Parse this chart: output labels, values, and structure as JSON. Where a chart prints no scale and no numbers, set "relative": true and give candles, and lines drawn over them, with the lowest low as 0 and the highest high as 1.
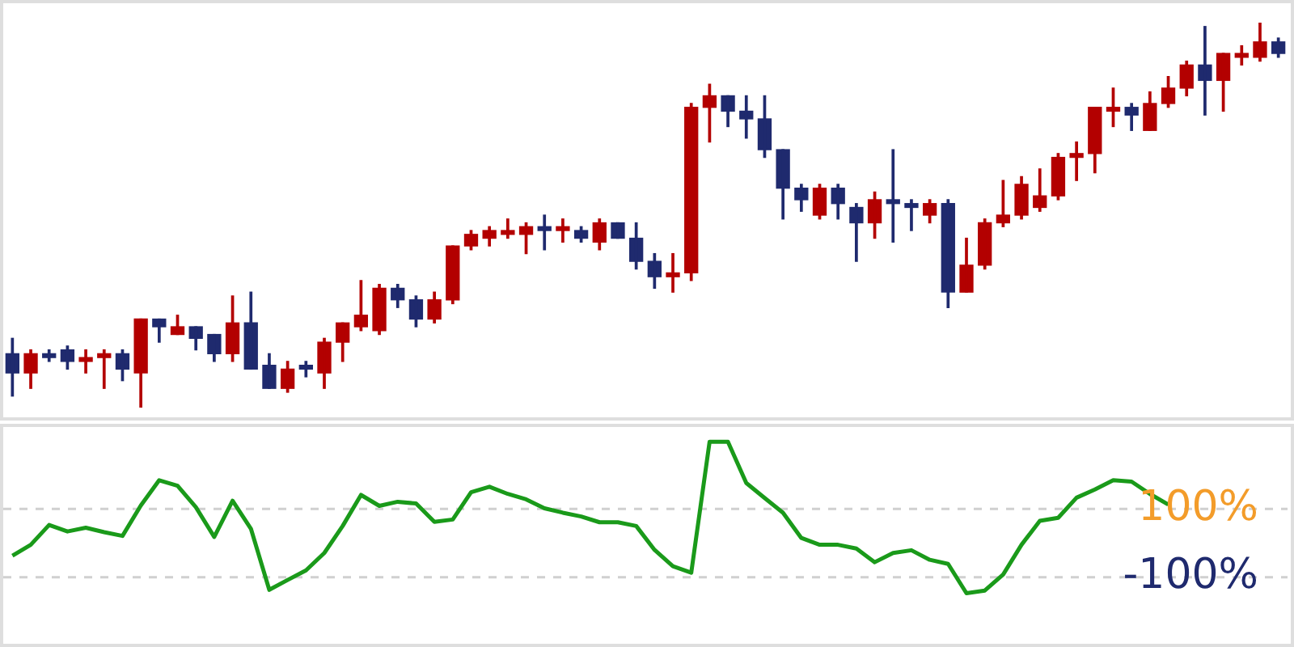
{
  "chart_data": [
    {
      "type": "candlestick",
      "relative": true,
      "categories": [
        null,
        null,
        null,
        null,
        null,
        null,
        null,
        null,
        null,
        null,
        null,
        null,
        null,
        null,
        null,
        null,
        null,
        null,
        null,
        null,
        null,
        null,
        null,
        null,
        null,
        null,
        null,
        null,
        null,
        null,
        null,
        null,
        null,
        null,
        null,
        null,
        null,
        null,
        null,
        null,
        null,
        null,
        null,
        null,
        null,
        null,
        null,
        null,
        null,
        null,
        null,
        null,
        null,
        null,
        null,
        null,
        null,
        null,
        null,
        null,
        null,
        null,
        null,
        null,
        null,
        null,
        null,
        null,
        null,
        null
      ],
      "ohlc": [
        [
          0.14,
          0.18,
          0.03,
          0.09
        ],
        [
          0.09,
          0.15,
          0.05,
          0.14
        ],
        [
          0.14,
          0.15,
          0.12,
          0.13
        ],
        [
          0.15,
          0.16,
          0.1,
          0.12
        ],
        [
          0.12,
          0.15,
          0.09,
          0.13
        ],
        [
          0.13,
          0.15,
          0.05,
          0.14
        ],
        [
          0.14,
          0.15,
          0.07,
          0.1
        ],
        [
          0.09,
          0.23,
          0,
          0.23
        ],
        [
          0.23,
          0.23,
          0.17,
          0.21
        ],
        [
          0.19,
          0.24,
          0.19,
          0.21
        ],
        [
          0.21,
          0.21,
          0.15,
          0.18
        ],
        [
          0.19,
          0.19,
          0.12,
          0.14
        ],
        [
          0.14,
          0.29,
          0.12,
          0.22
        ],
        [
          0.22,
          0.3,
          0.1,
          0.1
        ],
        [
          0.11,
          0.14,
          0.05,
          0.05
        ],
        [
          0.05,
          0.12,
          0.04,
          0.1
        ],
        [
          0.11,
          0.12,
          0.08,
          0.1
        ],
        [
          0.09,
          0.18,
          0.05,
          0.17
        ],
        [
          0.17,
          0.22,
          0.12,
          0.22
        ],
        [
          0.21,
          0.33,
          0.2,
          0.24
        ],
        [
          0.2,
          0.32,
          0.19,
          0.31
        ],
        [
          0.31,
          0.32,
          0.26,
          0.28
        ],
        [
          0.28,
          0.29,
          0.21,
          0.23
        ],
        [
          0.23,
          0.3,
          0.22,
          0.28
        ],
        [
          0.28,
          0.42,
          0.27,
          0.42
        ],
        [
          0.42,
          0.46,
          0.41,
          0.45
        ],
        [
          0.44,
          0.47,
          0.42,
          0.46
        ],
        [
          0.45,
          0.49,
          0.44,
          0.46
        ],
        [
          0.45,
          0.48,
          0.4,
          0.47
        ],
        [
          0.47,
          0.5,
          0.41,
          0.46
        ],
        [
          0.46,
          0.49,
          0.43,
          0.47
        ],
        [
          0.46,
          0.47,
          0.43,
          0.44
        ],
        [
          0.43,
          0.49,
          0.41,
          0.48
        ],
        [
          0.48,
          0.48,
          0.44,
          0.44
        ],
        [
          0.44,
          0.48,
          0.36,
          0.38
        ],
        [
          0.38,
          0.4,
          0.31,
          0.34
        ],
        [
          0.34,
          0.4,
          0.3,
          0.35
        ],
        [
          0.35,
          0.79,
          0.33,
          0.78
        ],
        [
          0.78,
          0.84,
          0.69,
          0.81
        ],
        [
          0.81,
          0.81,
          0.73,
          0.77
        ],
        [
          0.77,
          0.81,
          0.7,
          0.75
        ],
        [
          0.75,
          0.81,
          0.65,
          0.67
        ],
        [
          0.67,
          0.67,
          0.49,
          0.57
        ],
        [
          0.57,
          0.58,
          0.51,
          0.54
        ],
        [
          0.5,
          0.58,
          0.49,
          0.57
        ],
        [
          0.57,
          0.58,
          0.49,
          0.53
        ],
        [
          0.52,
          0.53,
          0.38,
          0.48
        ],
        [
          0.48,
          0.56,
          0.44,
          0.54
        ],
        [
          0.54,
          0.67,
          0.43,
          0.53
        ],
        [
          0.53,
          0.54,
          0.46,
          0.52
        ],
        [
          0.5,
          0.54,
          0.48,
          0.53
        ],
        [
          0.53,
          0.54,
          0.26,
          0.3
        ],
        [
          0.3,
          0.44,
          0.3,
          0.37
        ],
        [
          0.37,
          0.49,
          0.36,
          0.48
        ],
        [
          0.48,
          0.59,
          0.47,
          0.5
        ],
        [
          0.5,
          0.6,
          0.49,
          0.58
        ],
        [
          0.52,
          0.62,
          0.51,
          0.55
        ],
        [
          0.55,
          0.66,
          0.54,
          0.65
        ],
        [
          0.65,
          0.69,
          0.59,
          0.66
        ],
        [
          0.66,
          0.78,
          0.61,
          0.78
        ],
        [
          0.77,
          0.83,
          0.73,
          0.78
        ],
        [
          0.78,
          0.79,
          0.72,
          0.76
        ],
        [
          0.72,
          0.82,
          0.72,
          0.79
        ],
        [
          0.79,
          0.86,
          0.78,
          0.83
        ],
        [
          0.83,
          0.9,
          0.81,
          0.89
        ],
        [
          0.89,
          0.99,
          0.76,
          0.85
        ],
        [
          0.85,
          0.92,
          0.77,
          0.92
        ],
        [
          0.91,
          0.94,
          0.89,
          0.92
        ],
        [
          0.91,
          1,
          0.9,
          0.95
        ],
        [
          0.95,
          0.96,
          0.91,
          0.92
        ]
      ],
      "colors": [
        "#1f2a6e",
        "#b30000",
        "#1f2a6e",
        "#1f2a6e",
        "#b30000",
        "#b30000",
        "#1f2a6e",
        "#b30000",
        "#1f2a6e",
        "#b30000",
        "#1f2a6e",
        "#1f2a6e",
        "#b30000",
        "#1f2a6e",
        "#1f2a6e",
        "#b30000",
        "#1f2a6e",
        "#b30000",
        "#b30000",
        "#b30000",
        "#b30000",
        "#1f2a6e",
        "#1f2a6e",
        "#b30000",
        "#b30000",
        "#b30000",
        "#b30000",
        "#b30000",
        "#b30000",
        "#1f2a6e",
        "#b30000",
        "#1f2a6e",
        "#b30000",
        "#1f2a6e",
        "#1f2a6e",
        "#1f2a6e",
        "#b30000",
        "#b30000",
        "#b30000",
        "#1f2a6e",
        "#1f2a6e",
        "#1f2a6e",
        "#1f2a6e",
        "#1f2a6e",
        "#b30000",
        "#1f2a6e",
        "#1f2a6e",
        "#b30000",
        "#1f2a6e",
        "#1f2a6e",
        "#b30000",
        "#1f2a6e",
        "#b30000",
        "#b30000",
        "#b30000",
        "#b30000",
        "#b30000",
        "#b30000",
        "#b30000",
        "#b30000",
        "#b30000",
        "#1f2a6e",
        "#b30000",
        "#b30000",
        "#b30000",
        "#1f2a6e",
        "#b30000",
        "#b30000",
        "#b30000",
        "#1f2a6e"
      ]
    },
    {
      "type": "line",
      "tick_labels": "y",
      "color": "#1a9a1a",
      "categories": [
        null,
        null,
        null,
        null,
        null,
        null,
        null,
        null,
        null,
        null,
        null,
        null,
        null,
        null,
        null,
        null,
        null,
        null,
        null,
        null,
        null,
        null,
        null,
        null,
        null,
        null,
        null,
        null,
        null,
        null,
        null,
        null,
        null,
        null,
        null,
        null,
        null,
        null,
        null,
        null,
        null,
        null,
        null,
        null,
        null,
        null,
        null,
        null,
        null,
        null,
        null,
        null,
        null,
        null,
        null,
        null,
        null,
        null,
        null,
        null,
        null,
        null,
        null,
        null,
        null,
        null,
        null,
        null,
        null,
        null
      ],
      "values": [
        -37,
        -5,
        53,
        34,
        45,
        32,
        21,
        110,
        184,
        168,
        105,
        18,
        124,
        42,
        -137,
        -108,
        -80,
        -29,
        50,
        141,
        109,
        121,
        116,
        62,
        69,
        149,
        165,
        144,
        128,
        102,
        89,
        78,
        61,
        61,
        50,
        -20,
        -68,
        -87,
        297,
        297,
        176,
        132,
        89,
        15,
        -5,
        -5,
        -16,
        -56,
        -29,
        -21,
        -49,
        -61,
        -147,
        -139,
        -92,
        -5,
        65,
        74,
        133,
        157,
        184,
        180,
        144,
        113,
        null,
        null,
        null,
        null,
        null,
        null
      ],
      "ylim": [
        -295,
        340
      ],
      "yticks": [
        {
          "value": 100,
          "label": "100%"
        },
        {
          "value": -100,
          "label": "-100%"
        }
      ],
      "grid": "y"
    }
  ]
}
